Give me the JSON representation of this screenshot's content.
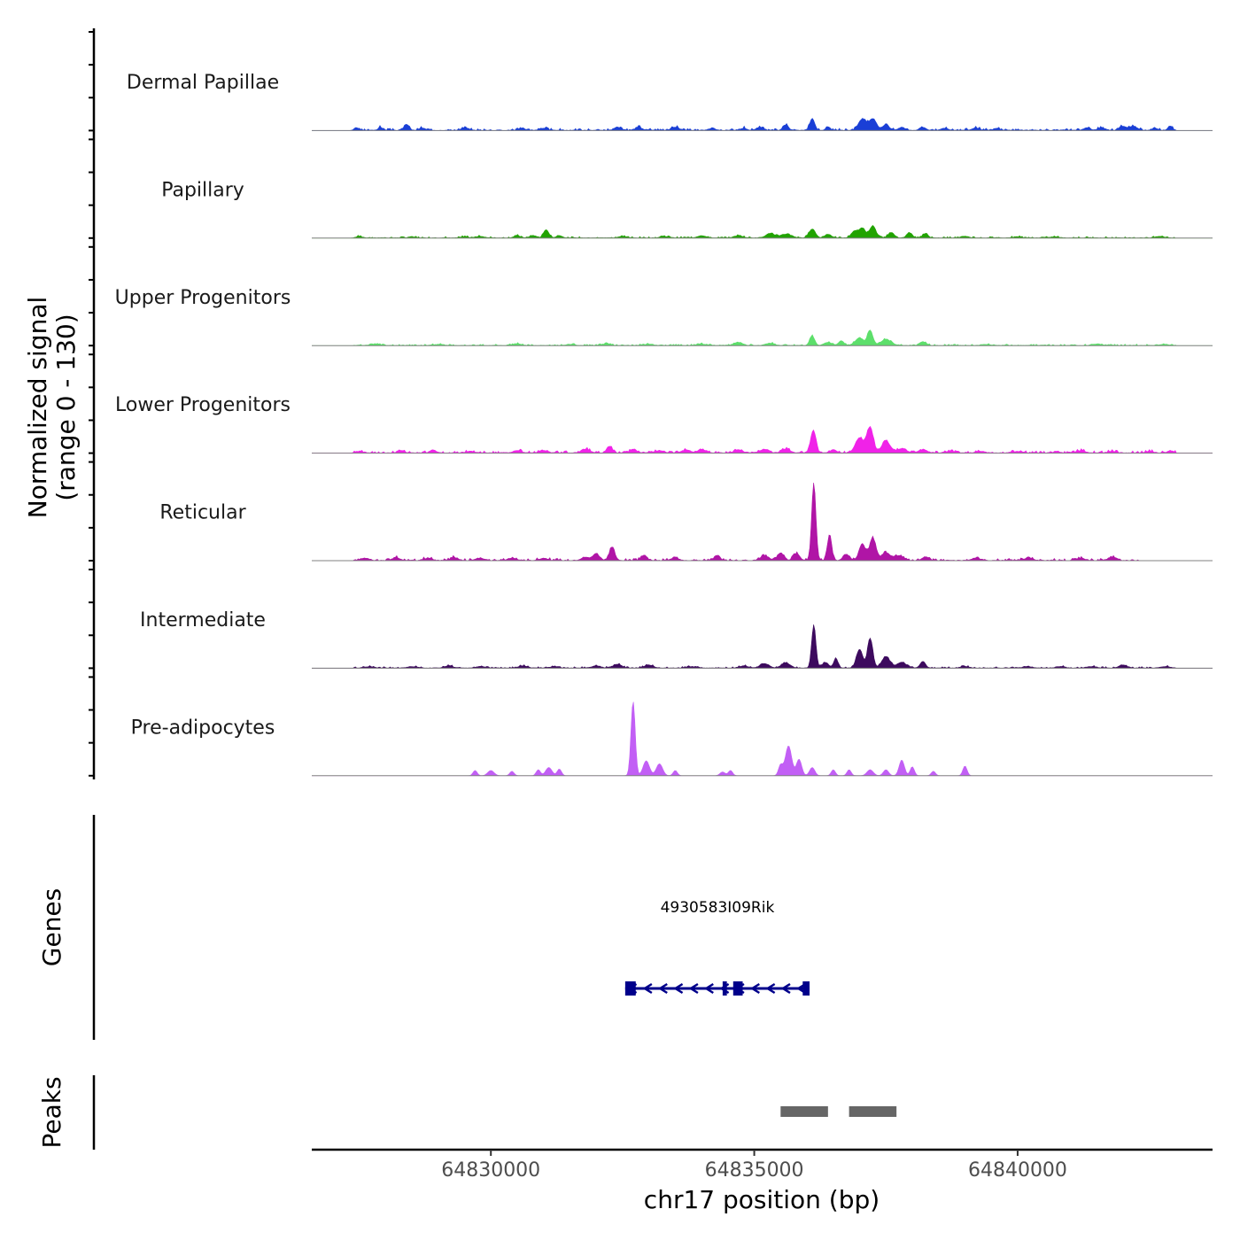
{
  "chart_data": {
    "type": "area",
    "title": "",
    "chromosome": "chr17",
    "xlabel": "chr17 position (bp)",
    "ylabel_line1": "Normalized signal",
    "ylabel_line2": "(range 0 - 130)",
    "ylim": [
      0,
      130
    ],
    "xlim": [
      64826600,
      64843700
    ],
    "x_ticks": [
      64830000,
      64835000,
      64840000
    ],
    "x_tick_labels": [
      "64830000",
      "64835000",
      "64840000"
    ],
    "baseline_color": "#808080",
    "tracks": [
      {
        "name": "Dermal Papillae",
        "color": "#1a3fd6",
        "noise": {
          "level": 3,
          "start": 64827400,
          "end": 64843000,
          "seed": 3
        },
        "peaks": [
          [
            64827450,
            3,
            50
          ],
          [
            64827900,
            4,
            40
          ],
          [
            64828400,
            8,
            45
          ],
          [
            64828700,
            3,
            50
          ],
          [
            64829500,
            3,
            60
          ],
          [
            64830600,
            3,
            50
          ],
          [
            64831000,
            3,
            60
          ],
          [
            64832400,
            4,
            60
          ],
          [
            64832800,
            4,
            60
          ],
          [
            64833500,
            4,
            80
          ],
          [
            64834200,
            3,
            60
          ],
          [
            64834800,
            3,
            50
          ],
          [
            64835600,
            7,
            50
          ],
          [
            64835100,
            4,
            60
          ],
          [
            64836100,
            16,
            45
          ],
          [
            64836400,
            3,
            50
          ],
          [
            64837050,
            15,
            70
          ],
          [
            64837250,
            15,
            70
          ],
          [
            64837500,
            8,
            60
          ],
          [
            64837800,
            4,
            60
          ],
          [
            64838200,
            4,
            60
          ],
          [
            64838600,
            3,
            60
          ],
          [
            64839200,
            3,
            70
          ],
          [
            64839600,
            3,
            50
          ],
          [
            64841300,
            3,
            60
          ],
          [
            64841600,
            3,
            70
          ],
          [
            64842000,
            5,
            70
          ],
          [
            64842200,
            5,
            70
          ],
          [
            64842600,
            3,
            50
          ],
          [
            64842900,
            6,
            40
          ]
        ]
      },
      {
        "name": "Papillary",
        "color": "#21a300",
        "noise": {
          "level": 2,
          "start": 64827400,
          "end": 64843000,
          "seed": 7
        },
        "peaks": [
          [
            64827500,
            2,
            60
          ],
          [
            64828500,
            1.5,
            60
          ],
          [
            64829500,
            1.5,
            60
          ],
          [
            64829800,
            2,
            80
          ],
          [
            64830500,
            3,
            60
          ],
          [
            64830800,
            3,
            60
          ],
          [
            64831050,
            11,
            50
          ],
          [
            64831300,
            3,
            60
          ],
          [
            64832500,
            2,
            80
          ],
          [
            64833300,
            2,
            80
          ],
          [
            64834000,
            3,
            80
          ],
          [
            64834700,
            3,
            80
          ],
          [
            64835300,
            6,
            80
          ],
          [
            64835600,
            5,
            100
          ],
          [
            64836100,
            12,
            60
          ],
          [
            64836400,
            5,
            60
          ],
          [
            64836900,
            9,
            60
          ],
          [
            64837050,
            13,
            60
          ],
          [
            64837250,
            16,
            60
          ],
          [
            64837600,
            7,
            60
          ],
          [
            64837950,
            7,
            50
          ],
          [
            64838250,
            6,
            50
          ],
          [
            64839000,
            2,
            80
          ],
          [
            64840000,
            1.5,
            80
          ],
          [
            64840700,
            1.5,
            80
          ],
          [
            64842700,
            2,
            80
          ]
        ]
      },
      {
        "name": "Upper Progenitors",
        "color": "#5ddf6b",
        "noise": {
          "level": 2,
          "start": 64827400,
          "end": 64843000,
          "seed": 11
        },
        "peaks": [
          [
            64827800,
            2,
            80
          ],
          [
            64829000,
            1.5,
            80
          ],
          [
            64830500,
            2,
            80
          ],
          [
            64831500,
            1.5,
            80
          ],
          [
            64832200,
            2,
            80
          ],
          [
            64833000,
            2,
            80
          ],
          [
            64834000,
            2,
            80
          ],
          [
            64834700,
            4,
            80
          ],
          [
            64835300,
            3,
            80
          ],
          [
            64836100,
            13,
            45
          ],
          [
            64836400,
            4,
            70
          ],
          [
            64836650,
            6,
            50
          ],
          [
            64837000,
            10,
            80
          ],
          [
            64837200,
            20,
            50
          ],
          [
            64837500,
            8,
            100
          ],
          [
            64838200,
            5,
            60
          ],
          [
            64839400,
            1.5,
            80
          ],
          [
            64841500,
            2,
            80
          ],
          [
            64842800,
            1.5,
            80
          ]
        ]
      },
      {
        "name": "Lower Progenitors",
        "color": "#f022e8",
        "noise": {
          "level": 3,
          "start": 64827400,
          "end": 64843000,
          "seed": 13
        },
        "peaks": [
          [
            64827500,
            2,
            80
          ],
          [
            64828300,
            3,
            60
          ],
          [
            64828900,
            4,
            60
          ],
          [
            64829600,
            2,
            80
          ],
          [
            64830500,
            3,
            80
          ],
          [
            64831000,
            3,
            80
          ],
          [
            64831800,
            5,
            80
          ],
          [
            64832250,
            9,
            50
          ],
          [
            64832700,
            5,
            60
          ],
          [
            64833200,
            3,
            80
          ],
          [
            64833700,
            4,
            80
          ],
          [
            64834000,
            4,
            80
          ],
          [
            64834700,
            4,
            80
          ],
          [
            64835200,
            5,
            80
          ],
          [
            64835600,
            5,
            80
          ],
          [
            64836120,
            30,
            50
          ],
          [
            64836500,
            4,
            60
          ],
          [
            64837000,
            20,
            80
          ],
          [
            64837200,
            34,
            60
          ],
          [
            64837500,
            16,
            80
          ],
          [
            64837800,
            6,
            80
          ],
          [
            64838200,
            4,
            80
          ],
          [
            64838700,
            2,
            80
          ],
          [
            64839300,
            2,
            80
          ],
          [
            64840000,
            2,
            80
          ],
          [
            64841200,
            3,
            80
          ],
          [
            64841800,
            2,
            80
          ],
          [
            64842500,
            2,
            80
          ],
          [
            64842900,
            3,
            50
          ]
        ]
      },
      {
        "name": "Reticular",
        "color": "#b015a6",
        "noise": {
          "level": 3,
          "start": 64827400,
          "end": 64842300,
          "seed": 17
        },
        "peaks": [
          [
            64827600,
            3,
            80
          ],
          [
            64828200,
            4,
            60
          ],
          [
            64828800,
            3,
            80
          ],
          [
            64829300,
            4,
            60
          ],
          [
            64829800,
            3,
            80
          ],
          [
            64830400,
            3,
            80
          ],
          [
            64831000,
            3,
            80
          ],
          [
            64831800,
            4,
            80
          ],
          [
            64832000,
            9,
            60
          ],
          [
            64832300,
            18,
            50
          ],
          [
            64832900,
            7,
            50
          ],
          [
            64833500,
            3,
            80
          ],
          [
            64834300,
            7,
            50
          ],
          [
            64835200,
            6,
            80
          ],
          [
            64835500,
            10,
            60
          ],
          [
            64835800,
            9,
            60
          ],
          [
            64836130,
            104,
            40
          ],
          [
            64836430,
            35,
            40
          ],
          [
            64836750,
            8,
            60
          ],
          [
            64837050,
            22,
            60
          ],
          [
            64837250,
            30,
            60
          ],
          [
            64837500,
            10,
            80
          ],
          [
            64837750,
            6,
            80
          ],
          [
            64838250,
            5,
            60
          ],
          [
            64839200,
            3,
            80
          ],
          [
            64840200,
            3,
            80
          ],
          [
            64841200,
            3,
            80
          ],
          [
            64841800,
            4,
            80
          ]
        ]
      },
      {
        "name": "Intermediate",
        "color": "#3d0a5e",
        "noise": {
          "level": 2,
          "start": 64827400,
          "end": 64843000,
          "seed": 19
        },
        "peaks": [
          [
            64827700,
            2,
            80
          ],
          [
            64828500,
            2,
            80
          ],
          [
            64829200,
            3,
            80
          ],
          [
            64829800,
            2,
            80
          ],
          [
            64830600,
            3,
            80
          ],
          [
            64831200,
            2,
            80
          ],
          [
            64832000,
            3,
            80
          ],
          [
            64832400,
            5,
            80
          ],
          [
            64833000,
            4,
            80
          ],
          [
            64833800,
            2,
            80
          ],
          [
            64834800,
            3,
            80
          ],
          [
            64835200,
            6,
            80
          ],
          [
            64835600,
            7,
            80
          ],
          [
            64836130,
            58,
            40
          ],
          [
            64836350,
            7,
            60
          ],
          [
            64836550,
            13,
            40
          ],
          [
            64837000,
            25,
            60
          ],
          [
            64837200,
            40,
            50
          ],
          [
            64837500,
            15,
            80
          ],
          [
            64837800,
            8,
            80
          ],
          [
            64838200,
            9,
            50
          ],
          [
            64839000,
            2,
            80
          ],
          [
            64840200,
            2,
            80
          ],
          [
            64840800,
            2,
            80
          ],
          [
            64841400,
            2,
            80
          ],
          [
            64842000,
            4,
            80
          ],
          [
            64842800,
            2,
            80
          ]
        ]
      },
      {
        "name": "Pre-adipocytes",
        "color": "#c25ff5",
        "noise": {
          "level": 0,
          "start": 64827400,
          "end": 64843000,
          "seed": 23
        },
        "peaks": [
          [
            64829700,
            7,
            40
          ],
          [
            64830000,
            7,
            60
          ],
          [
            64830400,
            6,
            40
          ],
          [
            64830900,
            8,
            40
          ],
          [
            64831100,
            11,
            60
          ],
          [
            64831300,
            9,
            40
          ],
          [
            64832700,
            100,
            40
          ],
          [
            64832950,
            20,
            60
          ],
          [
            64833200,
            16,
            60
          ],
          [
            64833500,
            7,
            40
          ],
          [
            64834400,
            5,
            50
          ],
          [
            64834550,
            7,
            40
          ],
          [
            64835500,
            14,
            40
          ],
          [
            64835650,
            40,
            60
          ],
          [
            64835850,
            22,
            50
          ],
          [
            64836100,
            11,
            50
          ],
          [
            64836500,
            8,
            40
          ],
          [
            64836800,
            8,
            40
          ],
          [
            64837200,
            8,
            60
          ],
          [
            64837500,
            8,
            50
          ],
          [
            64837800,
            21,
            50
          ],
          [
            64838000,
            12,
            40
          ],
          [
            64838400,
            6,
            40
          ],
          [
            64839000,
            13,
            40
          ]
        ]
      }
    ],
    "genes": [
      {
        "name": "4930583I09Rik",
        "strand": "-",
        "start": 64832550,
        "end": 64836050,
        "exons": [
          [
            64832550,
            64832750
          ],
          [
            64834400,
            64834480
          ],
          [
            64834600,
            64834780
          ],
          [
            64835920,
            64836050
          ]
        ],
        "color": "#00008b"
      }
    ],
    "peaks_track": [
      [
        64835500,
        64836400
      ],
      [
        64836800,
        64837700
      ]
    ],
    "panel_labels": {
      "genes": "Genes",
      "peaks": "Peaks"
    },
    "peak_color": "#666666"
  }
}
